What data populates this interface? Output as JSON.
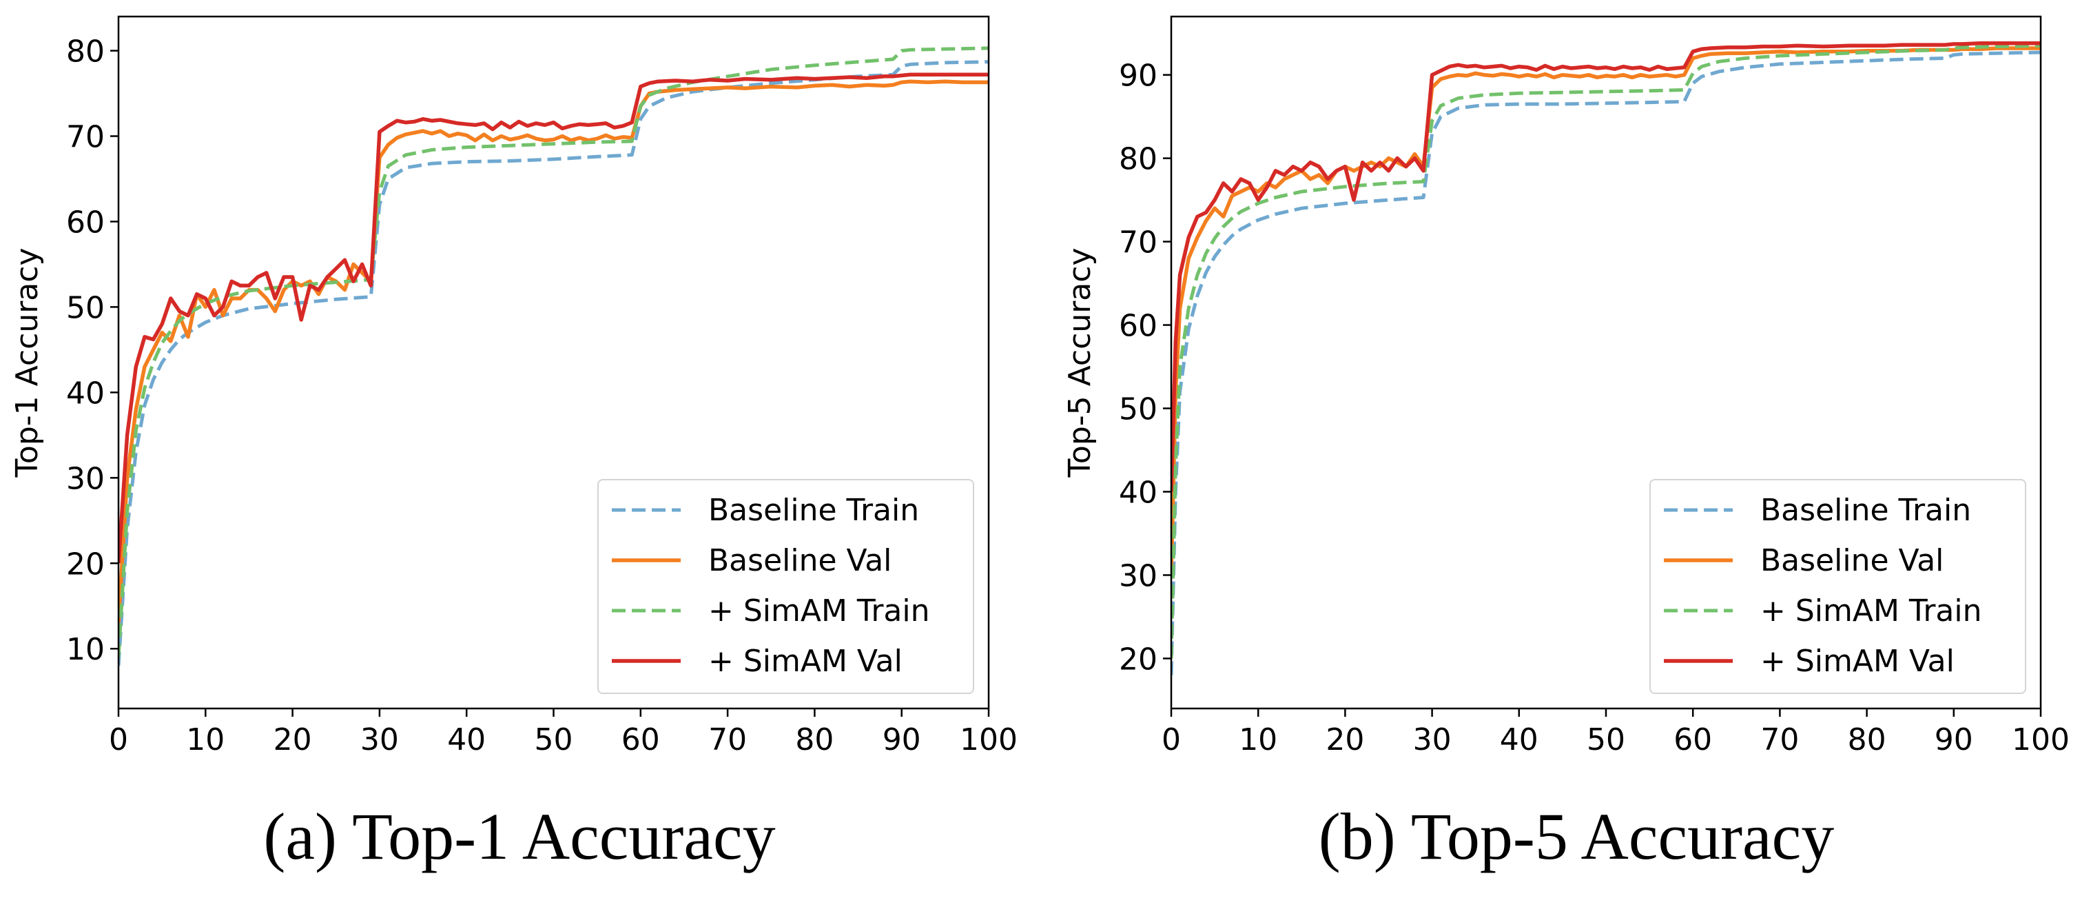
{
  "chart_data": [
    {
      "type": "line",
      "ylabel": "Top-1 Accuracy",
      "xlabel": "",
      "caption": "(a) Top-1 Accuracy",
      "xlim": [
        0,
        100
      ],
      "ylim": [
        3,
        84
      ],
      "xticks": [
        0,
        10,
        20,
        30,
        40,
        50,
        60,
        70,
        80,
        90,
        100
      ],
      "yticks": [
        10,
        20,
        30,
        40,
        50,
        60,
        70,
        80
      ],
      "legend_position": "bottom-right",
      "series": [
        {
          "name": "Baseline Train",
          "color": "#6fa8d0",
          "style": "dashed",
          "x": [
            0,
            1,
            2,
            3,
            4,
            5,
            6,
            7,
            8,
            10,
            12,
            15,
            20,
            25,
            29,
            30,
            31,
            33,
            36,
            40,
            45,
            50,
            55,
            59,
            60,
            61,
            63,
            66,
            70,
            75,
            80,
            85,
            89,
            90,
            91,
            95,
            100
          ],
          "y": [
            8,
            24,
            33,
            38.5,
            41.5,
            43.5,
            45,
            46.2,
            47,
            48.2,
            49,
            49.8,
            50.4,
            50.9,
            51.2,
            62,
            65,
            66.3,
            66.8,
            67,
            67.1,
            67.3,
            67.6,
            67.8,
            72,
            73.5,
            74.5,
            75.2,
            75.7,
            76.2,
            76.6,
            77,
            77.2,
            78.2,
            78.4,
            78.6,
            78.7
          ]
        },
        {
          "name": "Baseline Val",
          "color": "#f47f1f",
          "style": "solid",
          "x": [
            0,
            1,
            2,
            3,
            4,
            5,
            6,
            7,
            8,
            9,
            10,
            11,
            12,
            13,
            14,
            15,
            16,
            17,
            18,
            19,
            20,
            21,
            22,
            23,
            24,
            25,
            26,
            27,
            28,
            29,
            30,
            31,
            32,
            33,
            34,
            35,
            36,
            37,
            38,
            39,
            40,
            41,
            42,
            43,
            44,
            45,
            46,
            47,
            48,
            49,
            50,
            51,
            52,
            53,
            54,
            55,
            56,
            57,
            58,
            59,
            60,
            61,
            62,
            64,
            66,
            68,
            70,
            72,
            75,
            78,
            80,
            82,
            84,
            86,
            88,
            89,
            90,
            91,
            93,
            95,
            97,
            100
          ],
          "y": [
            13,
            30,
            38,
            43,
            45,
            47,
            46,
            49,
            46.5,
            51.5,
            50,
            52,
            49,
            51,
            51,
            52,
            52,
            51,
            49.5,
            52,
            53,
            52.5,
            53,
            51.5,
            53.5,
            53,
            52,
            55,
            54,
            53,
            67.5,
            69,
            69.8,
            70.2,
            70.4,
            70.6,
            70.3,
            70.6,
            70,
            70.3,
            70.1,
            69.5,
            70.2,
            69.5,
            70,
            69.6,
            69.8,
            70.1,
            69.7,
            69.5,
            69.6,
            70,
            69.5,
            69.8,
            69.5,
            69.7,
            70.1,
            69.7,
            69.9,
            69.8,
            73.5,
            75,
            75.2,
            75.4,
            75.5,
            75.6,
            75.7,
            75.6,
            75.8,
            75.7,
            75.9,
            76,
            75.8,
            76,
            75.9,
            76,
            76.3,
            76.4,
            76.3,
            76.4,
            76.3,
            76.3
          ]
        },
        {
          "name": "+ SimAM Train",
          "color": "#72c16b",
          "style": "dashed",
          "x": [
            0,
            1,
            2,
            3,
            4,
            5,
            6,
            7,
            8,
            10,
            12,
            15,
            20,
            25,
            29,
            30,
            31,
            33,
            36,
            40,
            45,
            50,
            55,
            59,
            60,
            61,
            63,
            66,
            70,
            75,
            80,
            85,
            89,
            90,
            91,
            95,
            100
          ],
          "y": [
            9,
            26,
            35.5,
            40.5,
            43.5,
            45.8,
            47.2,
            48.4,
            49.2,
            50.4,
            51.2,
            51.9,
            52.5,
            52.9,
            53.2,
            63.5,
            66.5,
            67.8,
            68.4,
            68.7,
            68.9,
            69.1,
            69.3,
            69.4,
            73.5,
            74.8,
            75.6,
            76.3,
            77,
            77.8,
            78.3,
            78.7,
            79,
            80,
            80.1,
            80.2,
            80.3
          ]
        },
        {
          "name": "+ SimAM Val",
          "color": "#d62a26",
          "style": "solid",
          "x": [
            0,
            1,
            2,
            3,
            4,
            5,
            6,
            7,
            8,
            9,
            10,
            11,
            12,
            13,
            14,
            15,
            16,
            17,
            18,
            19,
            20,
            21,
            22,
            23,
            24,
            25,
            26,
            27,
            28,
            29,
            30,
            31,
            32,
            33,
            34,
            35,
            36,
            37,
            38,
            39,
            40,
            41,
            42,
            43,
            44,
            45,
            46,
            47,
            48,
            49,
            50,
            51,
            52,
            53,
            54,
            55,
            56,
            57,
            58,
            59,
            60,
            61,
            62,
            64,
            66,
            68,
            70,
            72,
            75,
            78,
            80,
            82,
            84,
            86,
            88,
            89,
            90,
            91,
            93,
            95,
            97,
            100
          ],
          "y": [
            20,
            35,
            43,
            46.5,
            46.2,
            48,
            51,
            49.5,
            49,
            51.5,
            51,
            49,
            50,
            53,
            52.5,
            52.5,
            53.5,
            54,
            51,
            53.5,
            53.5,
            48.5,
            52.5,
            52,
            53.5,
            54.5,
            55.5,
            53,
            55,
            52.5,
            70.5,
            71.2,
            71.8,
            71.6,
            71.7,
            72,
            71.8,
            71.9,
            71.7,
            71.5,
            71.4,
            71.3,
            71.5,
            70.8,
            71.6,
            71,
            71.7,
            71.2,
            71.5,
            71.3,
            71.6,
            70.9,
            71.2,
            71.4,
            71.3,
            71.4,
            71.5,
            71,
            71.2,
            71.6,
            75.8,
            76.2,
            76.4,
            76.5,
            76.4,
            76.6,
            76.5,
            76.7,
            76.6,
            76.8,
            76.7,
            76.8,
            76.9,
            76.8,
            77,
            77,
            77.1,
            77.2,
            77.2,
            77.2,
            77.2,
            77.2
          ]
        }
      ]
    },
    {
      "type": "line",
      "ylabel": "Top-5 Accuracy",
      "xlabel": "",
      "caption": "(b) Top-5 Accuracy",
      "xlim": [
        0,
        100
      ],
      "ylim": [
        14,
        97
      ],
      "xticks": [
        0,
        10,
        20,
        30,
        40,
        50,
        60,
        70,
        80,
        90,
        100
      ],
      "yticks": [
        20,
        30,
        40,
        50,
        60,
        70,
        80,
        90
      ],
      "legend_position": "bottom-right",
      "series": [
        {
          "name": "Baseline Train",
          "color": "#6fa8d0",
          "style": "dashed",
          "x": [
            0,
            0.5,
            1,
            2,
            3,
            4,
            5,
            6,
            7,
            8,
            10,
            12,
            15,
            20,
            25,
            29,
            30,
            31,
            33,
            36,
            40,
            45,
            50,
            55,
            59,
            60,
            61,
            63,
            66,
            70,
            75,
            80,
            85,
            89,
            90,
            91,
            95,
            100
          ],
          "y": [
            18,
            40,
            52,
            59.5,
            63.5,
            66.3,
            68.2,
            69.6,
            70.7,
            71.5,
            72.6,
            73.3,
            74,
            74.6,
            75,
            75.3,
            83,
            85,
            86,
            86.4,
            86.5,
            86.5,
            86.6,
            86.7,
            86.8,
            89,
            89.8,
            90.4,
            90.9,
            91.3,
            91.5,
            91.7,
            91.9,
            92,
            92.4,
            92.5,
            92.6,
            92.7
          ]
        },
        {
          "name": "Baseline Val",
          "color": "#f47f1f",
          "style": "solid",
          "x": [
            0,
            0.5,
            1,
            2,
            3,
            4,
            5,
            6,
            7,
            8,
            9,
            10,
            11,
            12,
            13,
            14,
            15,
            16,
            17,
            18,
            19,
            20,
            21,
            22,
            23,
            24,
            25,
            26,
            27,
            28,
            29,
            30,
            31,
            32,
            33,
            34,
            35,
            36,
            37,
            38,
            39,
            40,
            41,
            42,
            43,
            44,
            45,
            46,
            47,
            48,
            49,
            50,
            51,
            52,
            53,
            54,
            55,
            56,
            57,
            58,
            59,
            60,
            61,
            62,
            64,
            66,
            68,
            70,
            72,
            75,
            78,
            80,
            82,
            84,
            86,
            88,
            89,
            90,
            91,
            93,
            95,
            97,
            100
          ],
          "y": [
            30,
            52,
            62,
            68,
            70.5,
            72.5,
            74,
            73,
            75.5,
            76,
            76.5,
            76,
            77,
            76.5,
            77.5,
            78,
            78.5,
            77.5,
            78,
            77,
            78.5,
            79,
            78.5,
            79,
            79.5,
            79,
            80,
            79.5,
            79,
            80.5,
            79,
            88.5,
            89.5,
            89.8,
            90,
            89.9,
            90.2,
            90,
            89.9,
            90.1,
            90,
            89.8,
            90,
            89.8,
            90.1,
            89.7,
            90,
            89.9,
            89.8,
            90,
            89.7,
            89.9,
            89.8,
            90,
            89.7,
            90,
            89.8,
            89.9,
            90,
            89.8,
            90,
            92,
            92.3,
            92.5,
            92.6,
            92.6,
            92.7,
            92.8,
            92.7,
            92.8,
            92.8,
            92.9,
            92.9,
            92.9,
            93,
            93,
            93,
            93,
            93.1,
            93.1,
            93.2,
            93.2,
            93.2
          ]
        },
        {
          "name": "+ SimAM Train",
          "color": "#72c16b",
          "style": "dashed",
          "x": [
            0,
            0.5,
            1,
            2,
            3,
            4,
            5,
            6,
            7,
            8,
            10,
            12,
            15,
            20,
            25,
            29,
            30,
            31,
            33,
            36,
            40,
            45,
            50,
            55,
            59,
            60,
            61,
            63,
            66,
            70,
            75,
            80,
            85,
            89,
            90,
            91,
            95,
            100
          ],
          "y": [
            20,
            43,
            55,
            62,
            66,
            68.6,
            70.4,
            71.8,
            72.8,
            73.6,
            74.6,
            75.3,
            76,
            76.6,
            77,
            77.2,
            84.5,
            86.3,
            87.2,
            87.6,
            87.8,
            87.9,
            88,
            88.1,
            88.2,
            90.2,
            91,
            91.6,
            92,
            92.3,
            92.5,
            92.7,
            92.9,
            93,
            93.2,
            93.3,
            93.4,
            93.5
          ]
        },
        {
          "name": "+ SimAM Val",
          "color": "#d62a26",
          "style": "solid",
          "x": [
            0,
            0.5,
            1,
            2,
            3,
            4,
            5,
            6,
            7,
            8,
            9,
            10,
            11,
            12,
            13,
            14,
            15,
            16,
            17,
            18,
            19,
            20,
            21,
            22,
            23,
            24,
            25,
            26,
            27,
            28,
            29,
            30,
            31,
            32,
            33,
            34,
            35,
            36,
            37,
            38,
            39,
            40,
            41,
            42,
            43,
            44,
            45,
            46,
            47,
            48,
            49,
            50,
            51,
            52,
            53,
            54,
            55,
            56,
            57,
            58,
            59,
            60,
            61,
            62,
            64,
            66,
            68,
            70,
            72,
            75,
            78,
            80,
            82,
            84,
            86,
            88,
            89,
            90,
            91,
            93,
            95,
            97,
            100
          ],
          "y": [
            40,
            58,
            66,
            70.5,
            73,
            73.5,
            75,
            77,
            76,
            77.5,
            77,
            75,
            76.5,
            78.5,
            78,
            79,
            78.5,
            79.5,
            79,
            77.5,
            78.5,
            79,
            75,
            79.5,
            78.5,
            79.5,
            78.5,
            80,
            79,
            80,
            78.5,
            90,
            90.5,
            91,
            91.2,
            91,
            91.1,
            90.9,
            91,
            91.1,
            90.8,
            91,
            90.9,
            90.6,
            91.1,
            90.7,
            91,
            90.8,
            90.9,
            91,
            90.8,
            90.9,
            90.7,
            91,
            90.8,
            90.9,
            90.6,
            91,
            90.7,
            90.8,
            90.9,
            92.8,
            93.1,
            93.2,
            93.3,
            93.3,
            93.4,
            93.4,
            93.5,
            93.4,
            93.5,
            93.5,
            93.5,
            93.6,
            93.6,
            93.6,
            93.6,
            93.7,
            93.7,
            93.8,
            93.8,
            93.8,
            93.8
          ]
        }
      ]
    }
  ]
}
